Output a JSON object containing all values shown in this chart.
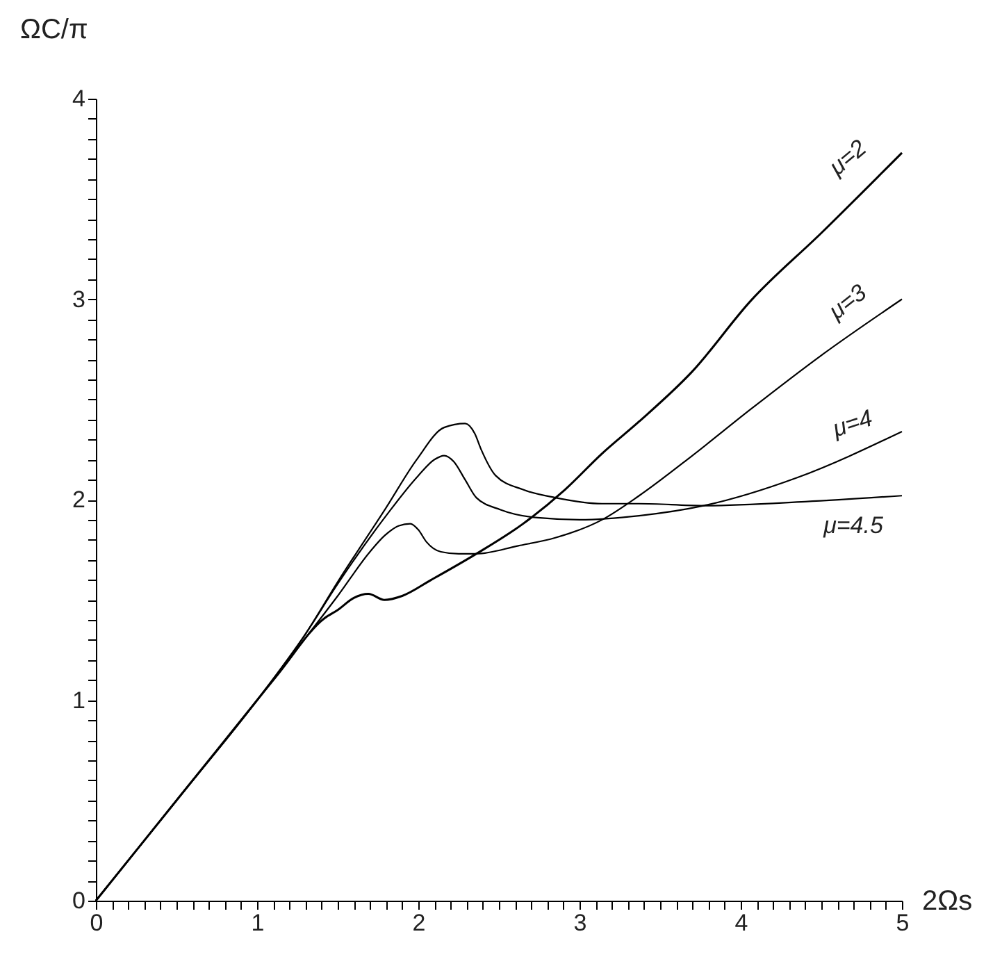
{
  "chart_data": {
    "type": "line",
    "xlabel": "2Ωs",
    "ylabel": "ΩC/π",
    "xlim": [
      0,
      5
    ],
    "ylim": [
      0,
      4
    ],
    "xticks": [
      0,
      {
        "value": 0.1,
        "label": null
      },
      {
        "value": 0.2,
        "label": null
      },
      {
        "value": 0.3,
        "label": null
      },
      {
        "value": 0.4,
        "label": null
      },
      {
        "value": 0.5,
        "label": null
      },
      {
        "value": 0.6,
        "label": null
      },
      {
        "value": 0.7,
        "label": null
      },
      {
        "value": 0.8,
        "label": null
      },
      {
        "value": 0.9,
        "label": null
      },
      1,
      {
        "value": 1.1,
        "label": null
      },
      {
        "value": 1.2,
        "label": null
      },
      {
        "value": 1.3,
        "label": null
      },
      {
        "value": 1.4,
        "label": null
      },
      {
        "value": 1.5,
        "label": null
      },
      {
        "value": 1.6,
        "label": null
      },
      {
        "value": 1.7,
        "label": null
      },
      {
        "value": 1.8,
        "label": null
      },
      {
        "value": 1.9,
        "label": null
      },
      2,
      {
        "value": 2.1,
        "label": null
      },
      {
        "value": 2.2,
        "label": null
      },
      {
        "value": 2.3,
        "label": null
      },
      {
        "value": 2.4,
        "label": null
      },
      {
        "value": 2.5,
        "label": null
      },
      {
        "value": 2.6,
        "label": null
      },
      {
        "value": 2.7,
        "label": null
      },
      {
        "value": 2.8,
        "label": null
      },
      {
        "value": 2.9,
        "label": null
      },
      3,
      {
        "value": 3.1,
        "label": null
      },
      {
        "value": 3.2,
        "label": null
      },
      {
        "value": 3.3,
        "label": null
      },
      {
        "value": 3.4,
        "label": null
      },
      {
        "value": 3.5,
        "label": null
      },
      {
        "value": 3.6,
        "label": null
      },
      {
        "value": 3.7,
        "label": null
      },
      {
        "value": 3.8,
        "label": null
      },
      {
        "value": 3.9,
        "label": null
      },
      4,
      {
        "value": 4.1,
        "label": null
      },
      {
        "value": 4.2,
        "label": null
      },
      {
        "value": 4.3,
        "label": null
      },
      {
        "value": 4.4,
        "label": null
      },
      {
        "value": 4.5,
        "label": null
      },
      {
        "value": 4.6,
        "label": null
      },
      {
        "value": 4.7,
        "label": null
      },
      {
        "value": 4.8,
        "label": null
      },
      {
        "value": 4.9,
        "label": null
      },
      5
    ],
    "yticks": [
      0,
      {
        "value": 0.1,
        "label": null
      },
      {
        "value": 0.2,
        "label": null
      },
      {
        "value": 0.3,
        "label": null
      },
      {
        "value": 0.4,
        "label": null
      },
      {
        "value": 0.5,
        "label": null
      },
      {
        "value": 0.6,
        "label": null
      },
      {
        "value": 0.7,
        "label": null
      },
      {
        "value": 0.8,
        "label": null
      },
      {
        "value": 0.9,
        "label": null
      },
      1,
      {
        "value": 1.1,
        "label": null
      },
      {
        "value": 1.2,
        "label": null
      },
      {
        "value": 1.3,
        "label": null
      },
      {
        "value": 1.4,
        "label": null
      },
      {
        "value": 1.5,
        "label": null
      },
      {
        "value": 1.6,
        "label": null
      },
      {
        "value": 1.7,
        "label": null
      },
      {
        "value": 1.8,
        "label": null
      },
      {
        "value": 1.9,
        "label": null
      },
      2,
      {
        "value": 2.1,
        "label": null
      },
      {
        "value": 2.2,
        "label": null
      },
      {
        "value": 2.3,
        "label": null
      },
      {
        "value": 2.4,
        "label": null
      },
      {
        "value": 2.5,
        "label": null
      },
      {
        "value": 2.6,
        "label": null
      },
      {
        "value": 2.7,
        "label": null
      },
      {
        "value": 2.8,
        "label": null
      },
      {
        "value": 2.9,
        "label": null
      },
      3,
      {
        "value": 3.1,
        "label": null
      },
      {
        "value": 3.2,
        "label": null
      },
      {
        "value": 3.3,
        "label": null
      },
      {
        "value": 3.4,
        "label": null
      },
      {
        "value": 3.5,
        "label": null
      },
      {
        "value": 3.6,
        "label": null
      },
      {
        "value": 3.7,
        "label": null
      },
      {
        "value": 3.8,
        "label": null
      },
      {
        "value": 3.9,
        "label": null
      },
      4
    ],
    "series": [
      {
        "name": "μ=2",
        "color": "#000000",
        "x": [
          0,
          0.5,
          1,
          1.13,
          1.42,
          1.5,
          1.6,
          1.69,
          1.79,
          1.9,
          2.08,
          2.36,
          2.65,
          2.91,
          3.14,
          3.37,
          3.7,
          4.06,
          4.5,
          5.0
        ],
        "values": [
          0,
          0.5,
          1,
          1.13,
          1.41,
          1.45,
          1.51,
          1.53,
          1.5,
          1.52,
          1.6,
          1.73,
          1.88,
          2.05,
          2.23,
          2.39,
          2.64,
          2.99,
          3.33,
          3.73
        ]
      },
      {
        "name": "μ=3",
        "color": "#000000",
        "x": [
          0,
          0.5,
          1,
          1.3,
          1.5,
          1.7,
          1.79,
          1.88,
          1.95,
          2.0,
          2.05,
          2.14,
          2.25,
          2.36,
          2.62,
          2.85,
          3.14,
          3.37,
          3.7,
          4.06,
          4.5,
          5.0
        ],
        "values": [
          0,
          0.5,
          1,
          1.31,
          1.52,
          1.74,
          1.82,
          1.87,
          1.88,
          1.85,
          1.79,
          1.74,
          1.73,
          1.73,
          1.77,
          1.81,
          1.9,
          2.02,
          2.22,
          2.45,
          2.72,
          3.0
        ]
      },
      {
        "name": "μ=4",
        "color": "#000000",
        "x": [
          0,
          0.5,
          1,
          1.3,
          1.5,
          1.8,
          2.0,
          2.1,
          2.16,
          2.22,
          2.29,
          2.36,
          2.51,
          2.74,
          3.0,
          3.37,
          3.77,
          4.35,
          5.0
        ],
        "values": [
          0,
          0.5,
          1,
          1.33,
          1.58,
          1.92,
          2.12,
          2.2,
          2.22,
          2.19,
          2.1,
          2.01,
          1.95,
          1.91,
          1.9,
          1.92,
          1.97,
          2.11,
          2.34
        ]
      },
      {
        "name": "μ=4.5",
        "color": "#000000",
        "x": [
          0,
          0.5,
          1,
          1.3,
          1.5,
          1.8,
          1.99,
          2.16,
          2.29,
          2.35,
          2.39,
          2.48,
          2.65,
          2.85,
          3.14,
          3.37,
          3.77,
          4.4,
          5.0
        ],
        "values": [
          0,
          0.5,
          1,
          1.33,
          1.59,
          1.96,
          2.2,
          2.36,
          2.38,
          2.33,
          2.25,
          2.12,
          2.05,
          2.01,
          1.98,
          1.98,
          1.97,
          1.99,
          2.02
        ]
      }
    ]
  }
}
